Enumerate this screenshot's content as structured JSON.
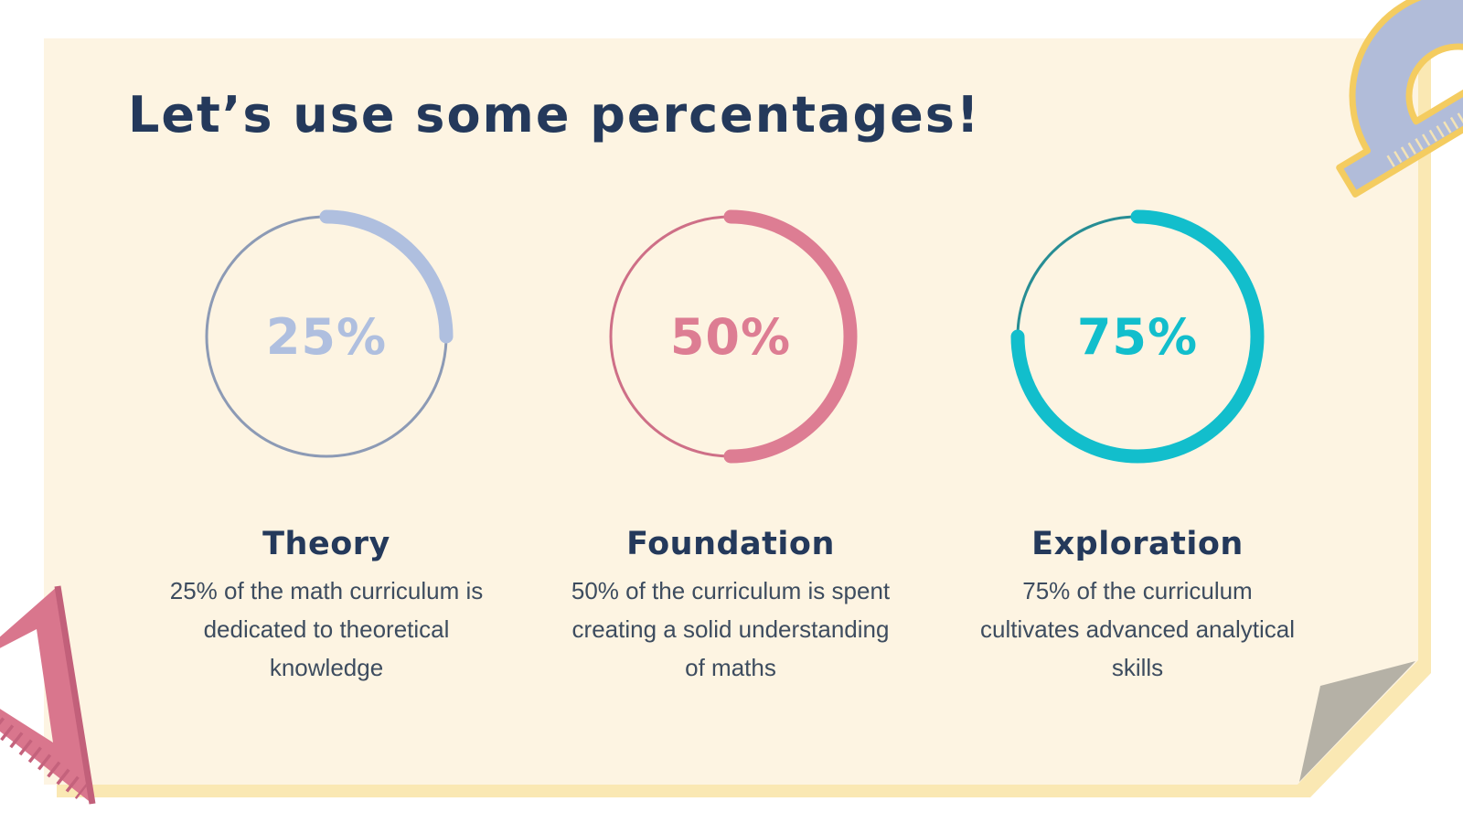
{
  "slide": {
    "title": "Let’s use some percentages!"
  },
  "chart_data": [
    {
      "type": "pie",
      "style": "donut-progress",
      "value": 25,
      "percent_label": "25%",
      "label": "Theory",
      "description": "25% of the math curriculum is dedicated to theoretical knowledge",
      "arc_color": "#AFBFDF",
      "ring_color": "#8C9AB5",
      "value_text_color": "#AFBFDF"
    },
    {
      "type": "pie",
      "style": "donut-progress",
      "value": 50,
      "percent_label": "50%",
      "label": "Foundation",
      "description": "50% of the curriculum is spent creating a solid understanding of maths",
      "arc_color": "#DD7D93",
      "ring_color": "#CE6F87",
      "value_text_color": "#DD7D93"
    },
    {
      "type": "pie",
      "style": "donut-progress",
      "value": 75,
      "percent_label": "75%",
      "label": "Exploration",
      "description": "75% of the curriculum cultivates advanced analytical skills",
      "arc_color": "#12BECC",
      "ring_color": "#278D94",
      "value_text_color": "#12BECC"
    }
  ],
  "colors": {
    "background": "#FFFFFF",
    "card": "#FDF4E2",
    "card_edge": "#FAE8B3",
    "fold": "#B5B1A6",
    "title_text": "#24395B",
    "body_text": "#3D4C5F"
  },
  "decorations": {
    "protractor_icon": {
      "fill": "#B1BCD9",
      "edge": "#F4CC60",
      "ticks": "#F3E3B6"
    },
    "set_square_icon": {
      "fill": "#D9768D",
      "edge": "#C2607A"
    },
    "folded_corner": {
      "fill": "#B5B1A6"
    }
  }
}
